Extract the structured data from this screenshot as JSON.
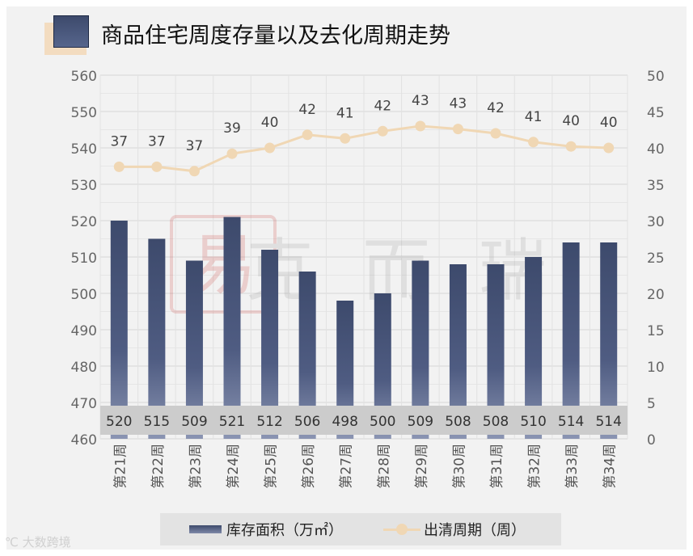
{
  "title": "商品住宅周度存量以及去化周期走势",
  "legend": {
    "bar_label": "库存面积（万㎡）",
    "line_label": "出清周期（周）"
  },
  "watermark": "克而瑞",
  "footer": "大数跨境",
  "colors": {
    "bar_top": "#3d4a6c",
    "bar_bottom": "#7f89a8",
    "line": "#f0d7b4",
    "label_band": "#cccccc"
  },
  "chart_data": {
    "type": "bar",
    "title": "商品住宅周度存量以及去化周期走势",
    "categories": [
      "第21周",
      "第22周",
      "第23周",
      "第24周",
      "第25周",
      "第26周",
      "第27周",
      "第28周",
      "第29周",
      "第30周",
      "第31周",
      "第32周",
      "第33周",
      "第34周"
    ],
    "series": [
      {
        "name": "库存面积（万㎡）",
        "type": "bar",
        "axis": "left",
        "values": [
          520,
          515,
          509,
          521,
          512,
          506,
          498,
          500,
          509,
          508,
          508,
          510,
          514,
          514
        ]
      },
      {
        "name": "出清周期（周）",
        "type": "line",
        "axis": "right",
        "values": [
          37,
          37,
          37,
          39,
          40,
          42,
          41,
          42,
          43,
          43,
          42,
          41,
          40,
          40
        ]
      }
    ],
    "y_left": {
      "min": 460,
      "max": 560,
      "ticks": [
        "560",
        "550",
        "540",
        "530",
        "520",
        "510",
        "500",
        "490",
        "480",
        "470",
        "460"
      ]
    },
    "y_right": {
      "min": 0,
      "max": 50,
      "ticks": [
        "50",
        "45",
        "40",
        "35",
        "30",
        "25",
        "20",
        "15",
        "10",
        "5",
        "0"
      ]
    },
    "line_plot_values": [
      37.4,
      37.4,
      36.8,
      39.2,
      40.0,
      41.8,
      41.3,
      42.3,
      43.0,
      42.6,
      42.0,
      40.8,
      40.2,
      40.0
    ],
    "grid": true,
    "legend_position": "bottom"
  }
}
